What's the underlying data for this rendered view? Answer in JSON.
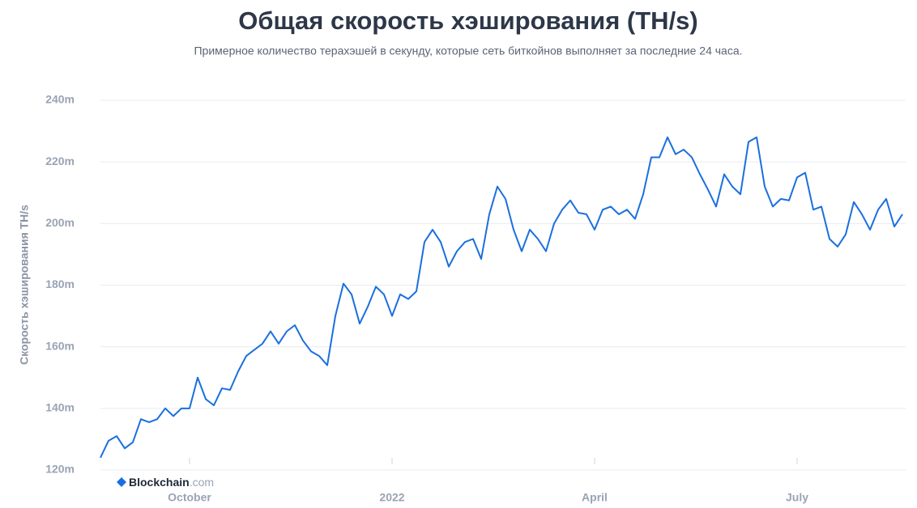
{
  "chart_data": {
    "type": "line",
    "title": "Общая скорость хэширования (TH/s)",
    "subtitle": "Примерное количество терахэшей в секунду, которые сеть биткойнов выполняет за последние 24 часа.",
    "y_label": "Скорость хэширования TH/s",
    "brand": "Blockchain",
    "brand_suffix": ".com",
    "color": "#1a6fdf",
    "grid": true,
    "ylim": [
      120,
      240
    ],
    "yticks": [
      {
        "value": 120,
        "label": "120m"
      },
      {
        "value": 140,
        "label": "140m"
      },
      {
        "value": 160,
        "label": "160m"
      },
      {
        "value": 180,
        "label": "180m"
      },
      {
        "value": 200,
        "label": "200m"
      },
      {
        "value": 220,
        "label": "220m"
      },
      {
        "value": 240,
        "label": "240m"
      }
    ],
    "categories": [
      null,
      null,
      null,
      null,
      null,
      null,
      null,
      null,
      null,
      null,
      null,
      "October",
      null,
      null,
      null,
      null,
      null,
      null,
      null,
      null,
      null,
      null,
      null,
      null,
      null,
      null,
      null,
      null,
      null,
      null,
      null,
      null,
      null,
      null,
      null,
      null,
      "2022",
      null,
      null,
      null,
      null,
      null,
      null,
      null,
      null,
      null,
      null,
      null,
      null,
      null,
      null,
      null,
      null,
      null,
      null,
      null,
      null,
      null,
      null,
      null,
      null,
      "April",
      null,
      null,
      null,
      null,
      null,
      null,
      null,
      null,
      null,
      null,
      null,
      null,
      null,
      null,
      null,
      null,
      null,
      null,
      null,
      null,
      null,
      null,
      null,
      null,
      "July",
      null,
      null,
      null,
      null,
      null,
      null,
      null,
      null,
      null,
      null,
      null,
      null,
      null
    ],
    "values": [
      124,
      129.5,
      131,
      127,
      129,
      136.5,
      135.5,
      136.5,
      140,
      137.5,
      140,
      140,
      150,
      143,
      141,
      146.5,
      146,
      152,
      157,
      159,
      161,
      165,
      161,
      165,
      167,
      162,
      158.5,
      157,
      154,
      170,
      180.5,
      177,
      167.5,
      173,
      179.5,
      177,
      170,
      177,
      175.5,
      178,
      194,
      198,
      194,
      186,
      191,
      194,
      195,
      188.5,
      203,
      212,
      208,
      198,
      191,
      198,
      195,
      191,
      200,
      204.5,
      207.5,
      203.5,
      203,
      198,
      204.5,
      205.5,
      203,
      204.5,
      201.5,
      209.5,
      221.5,
      221.5,
      228,
      222.5,
      224,
      221.5,
      216,
      211,
      205.5,
      216,
      212,
      209.5,
      226.5,
      228,
      212,
      205.5,
      208,
      207.5,
      215,
      216.5,
      204.5,
      205.5,
      195,
      192.5,
      196.5,
      207,
      203,
      198,
      204.5,
      208,
      199,
      203
    ]
  }
}
